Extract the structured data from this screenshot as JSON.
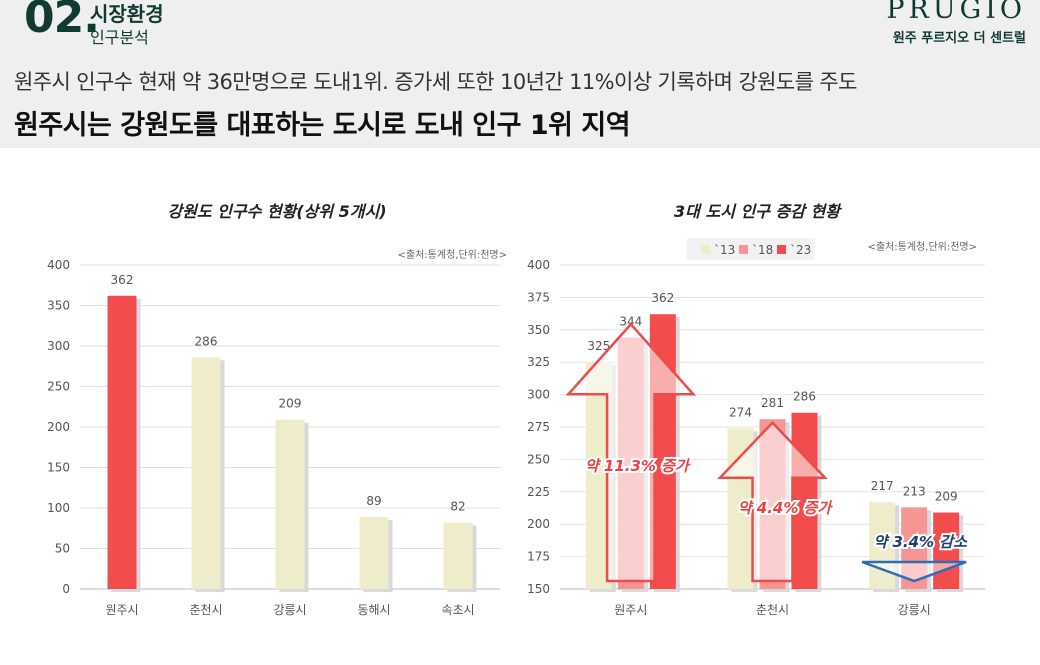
{
  "header": {
    "section_number": "02.",
    "section_title": "시장환경",
    "section_subtitle": "인구분석",
    "brand": "PRUGIO",
    "brand_sub": "원주 푸르지오 더 센트럴",
    "lead": "원주시 인구수 현재 약 36만명으로 도내1위. 증가세 또한 10년간 11%이상 기록하며 강원도를 주도",
    "headline": "원주시는 강원도를 대표하는 도시로 도내 인구 1위 지역"
  },
  "colors": {
    "red": "#f24c4c",
    "pink": "#f79595",
    "cream": "#efeccc",
    "dark_green": "#123a33"
  },
  "chart_data": [
    {
      "type": "bar",
      "title": "강원도 인구수 현황(상위 5개시)",
      "source": "<출처:통계청,단위:천명>",
      "categories": [
        "원주시",
        "춘천시",
        "강릉시",
        "동해시",
        "속초시"
      ],
      "values": [
        362,
        286,
        209,
        89,
        82
      ],
      "highlight": [
        "red",
        "cream",
        "cream",
        "cream",
        "cream"
      ],
      "ylim": [
        0,
        400
      ],
      "yticks": [
        0,
        50,
        100,
        150,
        200,
        250,
        300,
        350,
        400
      ],
      "grid": true
    },
    {
      "type": "bar",
      "title": "3대 도시 인구 증감 현황",
      "source": "<출처:통계청,단위:천명>",
      "categories": [
        "원주시",
        "춘천시",
        "강릉시"
      ],
      "series": [
        {
          "name": "`13",
          "color": "#efeccc",
          "values": [
            325,
            274,
            217
          ]
        },
        {
          "name": "`18",
          "color": "#f79595",
          "values": [
            344,
            281,
            213
          ]
        },
        {
          "name": "`23",
          "color": "#f24c4c",
          "values": [
            362,
            286,
            209
          ]
        }
      ],
      "ylim": [
        150,
        400
      ],
      "yticks": [
        150,
        175,
        200,
        225,
        250,
        275,
        300,
        325,
        350,
        375,
        400
      ],
      "grid": true,
      "legend_position": "top",
      "annotations": [
        {
          "category": "원주시",
          "text": "약 11.3% 증가",
          "direction": "up"
        },
        {
          "category": "춘천시",
          "text": "약 4.4% 증가",
          "direction": "up"
        },
        {
          "category": "강릉시",
          "text": "약 3.4% 감소",
          "direction": "down"
        }
      ]
    }
  ]
}
